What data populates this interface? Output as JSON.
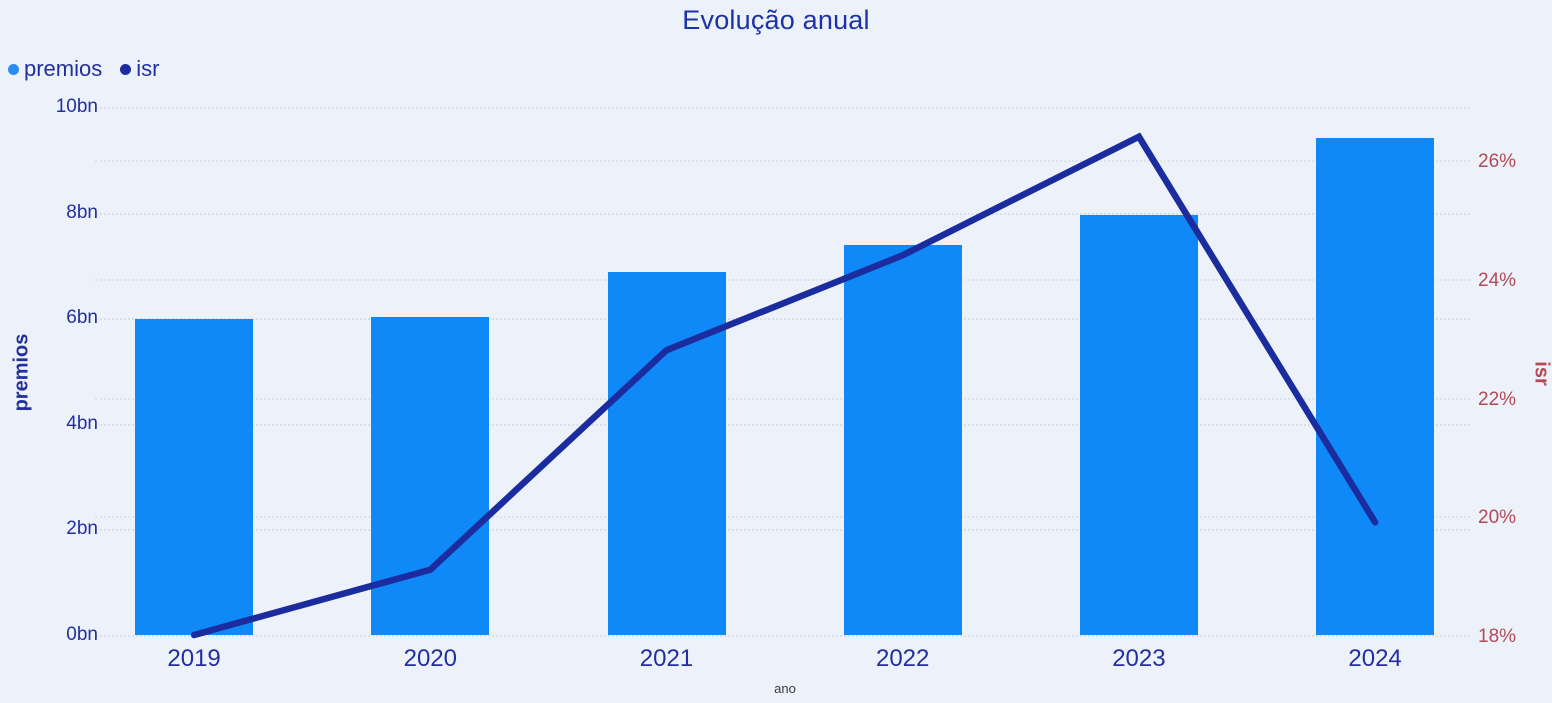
{
  "title": "Evolução anual",
  "legend": {
    "items": [
      {
        "label": "premios",
        "dot_color": "#2b8cf0"
      },
      {
        "label": "isr",
        "dot_color": "#1b2c9e"
      }
    ]
  },
  "chart_data": {
    "type": "bar+line combo",
    "title": "Evolução anual",
    "categories": [
      "2019",
      "2020",
      "2021",
      "2022",
      "2023",
      "2024"
    ],
    "series": [
      {
        "name": "premios",
        "type": "bar",
        "axis": "left",
        "color": "#1089f8",
        "values": [
          5.98,
          6.02,
          6.87,
          7.38,
          7.95,
          9.41
        ]
      },
      {
        "name": "isr",
        "type": "line",
        "axis": "right",
        "color": "#1b2c9e",
        "values": [
          18.0,
          19.1,
          22.8,
          24.4,
          26.4,
          19.9
        ]
      }
    ],
    "x_axis": {
      "label": "ano"
    },
    "left_axis": {
      "label": "premios",
      "min": 0,
      "max": 10,
      "ticks": [
        {
          "value": 0,
          "label": "0bn"
        },
        {
          "value": 2,
          "label": "2bn"
        },
        {
          "value": 4,
          "label": "4bn"
        },
        {
          "value": 6,
          "label": "6bn"
        },
        {
          "value": 8,
          "label": "8bn"
        },
        {
          "value": 10,
          "label": "10bn"
        }
      ]
    },
    "right_axis": {
      "label": "isr",
      "min": 18,
      "max": 26.9,
      "ticks": [
        {
          "value": 18,
          "label": "18%"
        },
        {
          "value": 20,
          "label": "20%"
        },
        {
          "value": 22,
          "label": "22%"
        },
        {
          "value": 24,
          "label": "24%"
        },
        {
          "value": 26,
          "label": "26%"
        }
      ]
    },
    "grid": true,
    "legend_position": "top-left"
  },
  "colors": {
    "background": "#edf2fa",
    "title_text": "#1c33a8",
    "navy_text": "#222f9e",
    "bar_fill": "#1089f8",
    "line_stroke": "#1b2c9e",
    "right_axis_text": "#b04b55",
    "gridline": "#d9dee8",
    "x_axis_title_text": "#3a3a3a"
  }
}
